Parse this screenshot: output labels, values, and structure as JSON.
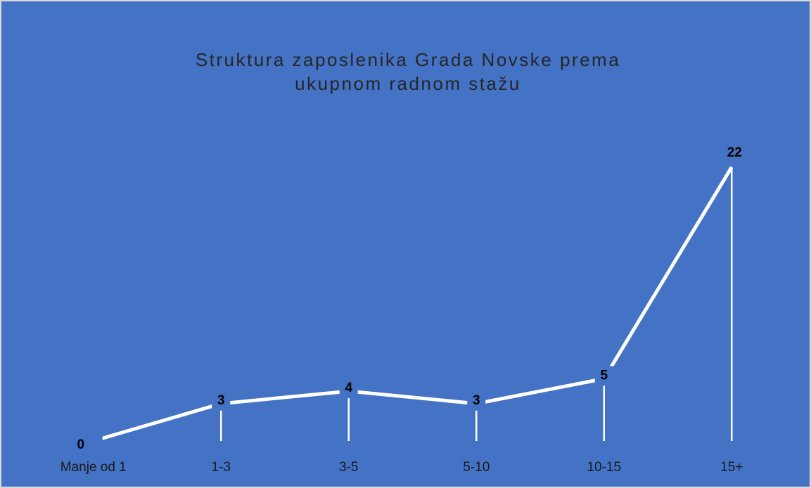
{
  "chart_data": {
    "type": "line",
    "title": [
      "Struktura zaposlenika Grada Novske prema",
      "ukupnom radnom stažu"
    ],
    "categories": [
      "Manje od 1",
      "1-3",
      "3-5",
      "5-10",
      "10-15",
      "15+"
    ],
    "values": [
      0,
      3,
      4,
      3,
      5,
      22
    ],
    "color": "#ffffff",
    "background": "#4472c4",
    "drop_lines": true
  }
}
